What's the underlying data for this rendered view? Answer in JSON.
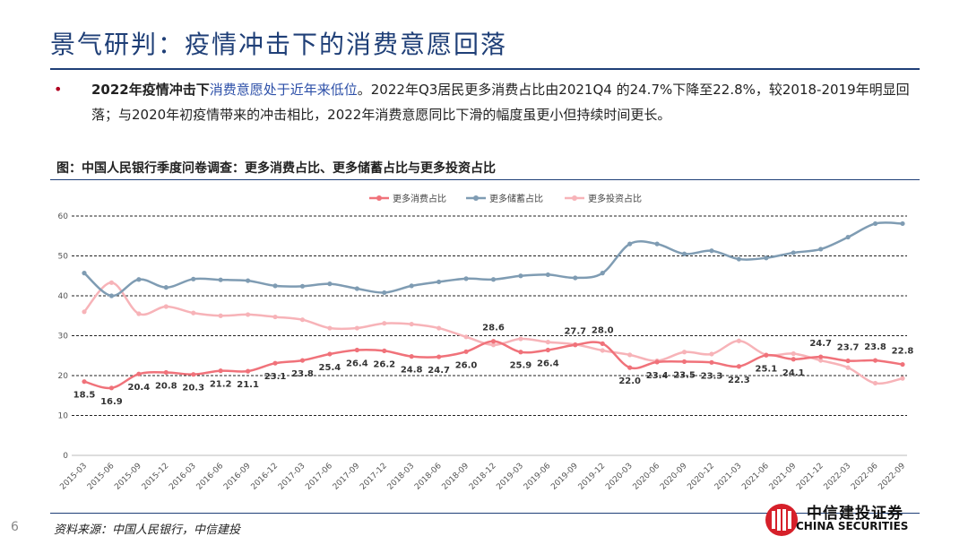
{
  "header": {
    "title": "景气研判：疫情冲击下的消费意愿回落"
  },
  "bullet": {
    "marker": "•",
    "bold_part": "2022年疫情冲击下",
    "highlight_part": "消费意愿处于近年来低位",
    "rest_part": "。2022年Q3居民更多消费占比由2021Q4 的24.7%下降至22.8%，较2018-2019年明显回落；与2020年初疫情带来的冲击相比，2022年消费意愿同比下滑的幅度虽更小但持续时间更长。"
  },
  "figure": {
    "title": "图：中国人民银行季度问卷调查：更多消费占比、更多储蓄占比与更多投资占比"
  },
  "footer": {
    "source": "资料来源：中国人民银行，中信建投",
    "page": "6",
    "logo_cn": "中信建投证券",
    "logo_en": "CHINA SECURITIES"
  },
  "colors": {
    "consumption": "#f0727a",
    "savings": "#7f9cb3",
    "investment": "#f7b3b8",
    "brand": "#1f3f77"
  },
  "chart_data": {
    "type": "line",
    "title": "",
    "xlabel": "",
    "ylabel": "",
    "ylim": [
      0,
      60
    ],
    "yticks": [
      0,
      10,
      20,
      30,
      40,
      50,
      60
    ],
    "grid": true,
    "legend_position": "top",
    "categories": [
      "2015-03",
      "2015-06",
      "2015-09",
      "2015-12",
      "2016-03",
      "2016-06",
      "2016-09",
      "2016-12",
      "2017-03",
      "2017-06",
      "2017-09",
      "2017-12",
      "2018-03",
      "2018-06",
      "2018-09",
      "2018-12",
      "2019-03",
      "2019-06",
      "2019-09",
      "2019-12",
      "2020-03",
      "2020-06",
      "2020-09",
      "2020-12",
      "2021-03",
      "2021-06",
      "2021-09",
      "2021-12",
      "2022-03",
      "2022-06",
      "2022-09"
    ],
    "series": [
      {
        "name": "更多消费占比",
        "key": "consumption",
        "values": [
          18.5,
          16.9,
          20.4,
          20.8,
          20.3,
          21.2,
          21.1,
          23.1,
          23.8,
          25.4,
          26.4,
          26.2,
          24.8,
          24.7,
          26.0,
          28.6,
          25.9,
          26.4,
          27.7,
          28.0,
          22.0,
          23.4,
          23.5,
          23.3,
          22.3,
          25.1,
          24.1,
          24.7,
          23.7,
          23.8,
          22.8
        ],
        "labels": [
          "18.5",
          "16.9",
          "20.4",
          "20.8",
          "20.3",
          "21.2",
          "21.1",
          "23.1",
          "23.8",
          "25.4",
          "26.4",
          "26.2",
          "24.8",
          "24.7",
          "26.0",
          "28.6",
          "25.9",
          "26.4",
          "27.7",
          "28.0",
          "22.0",
          "23.4",
          "23.5",
          "23.3",
          "22.3",
          "25.1",
          "24.1",
          "24.7",
          "23.7",
          "23.8",
          "22.8"
        ]
      },
      {
        "name": "更多储蓄占比",
        "key": "savings",
        "values": [
          45.7,
          40.0,
          44.1,
          42.1,
          44.2,
          44.0,
          43.8,
          42.5,
          42.4,
          43.0,
          41.8,
          40.8,
          42.5,
          43.5,
          44.3,
          44.1,
          45.0,
          45.3,
          44.5,
          45.7,
          53.0,
          53.0,
          50.5,
          51.3,
          49.2,
          49.5,
          50.8,
          51.7,
          54.7,
          58.1,
          58.1
        ]
      },
      {
        "name": "更多投资占比",
        "key": "investment",
        "values": [
          36.0,
          43.3,
          35.5,
          37.3,
          35.7,
          35.0,
          35.3,
          34.7,
          34.0,
          31.9,
          31.9,
          33.1,
          32.9,
          31.9,
          29.7,
          27.7,
          29.2,
          28.4,
          27.8,
          26.3,
          25.2,
          23.7,
          25.9,
          25.4,
          28.7,
          25.2,
          25.5,
          23.8,
          22.0,
          18.1,
          19.3
        ]
      }
    ]
  }
}
